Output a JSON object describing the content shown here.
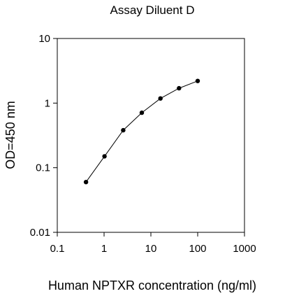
{
  "chart_data": {
    "type": "line",
    "title": "Assay Diluent D",
    "xlabel": "Human NPTXR concentration (ng/ml)",
    "ylabel": "OD=450 nm",
    "x_scale": "log",
    "y_scale": "log",
    "xlim": [
      0.1,
      1000
    ],
    "ylim": [
      0.01,
      10
    ],
    "x_ticks": [
      "0.1",
      "1",
      "10",
      "100",
      "1000"
    ],
    "y_ticks": [
      "0.01",
      "0.1",
      "1",
      "10"
    ],
    "grid": false,
    "series": [
      {
        "x": [
          0.41,
          1.02,
          2.56,
          6.4,
          16,
          40,
          100
        ],
        "y": [
          0.06,
          0.15,
          0.38,
          0.71,
          1.18,
          1.7,
          2.2
        ],
        "marker": "circle",
        "color": "#000000"
      }
    ]
  }
}
